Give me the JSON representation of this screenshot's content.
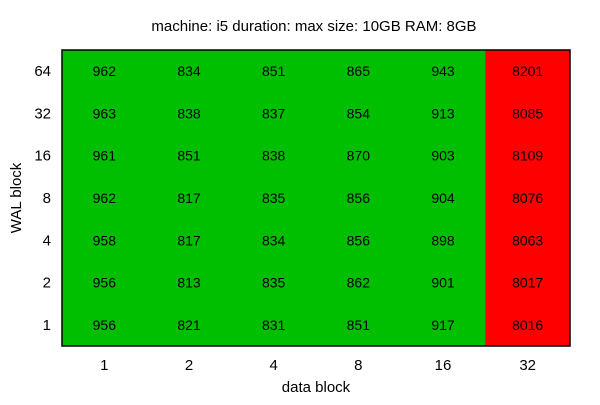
{
  "chart_data": {
    "type": "heatmap",
    "title": "machine: i5  duration: max  size: 10GB  RAM: 8GB",
    "xlabel": "data block",
    "ylabel": "WAL block",
    "x_categories": [
      "1",
      "2",
      "4",
      "8",
      "16",
      "32"
    ],
    "y_categories": [
      "64",
      "32",
      "16",
      "8",
      "4",
      "2",
      "1"
    ],
    "values": [
      [
        962,
        834,
        851,
        865,
        943,
        8201
      ],
      [
        963,
        838,
        837,
        854,
        913,
        8085
      ],
      [
        961,
        851,
        838,
        870,
        903,
        8109
      ],
      [
        962,
        817,
        835,
        856,
        904,
        8076
      ],
      [
        958,
        817,
        834,
        856,
        898,
        8063
      ],
      [
        956,
        813,
        835,
        862,
        901,
        8017
      ],
      [
        956,
        821,
        831,
        851,
        917,
        8016
      ]
    ],
    "color_scale": {
      "low": "#00bf00",
      "high": "#ff0000",
      "threshold": 2000
    },
    "grid": false,
    "legend": "none"
  }
}
